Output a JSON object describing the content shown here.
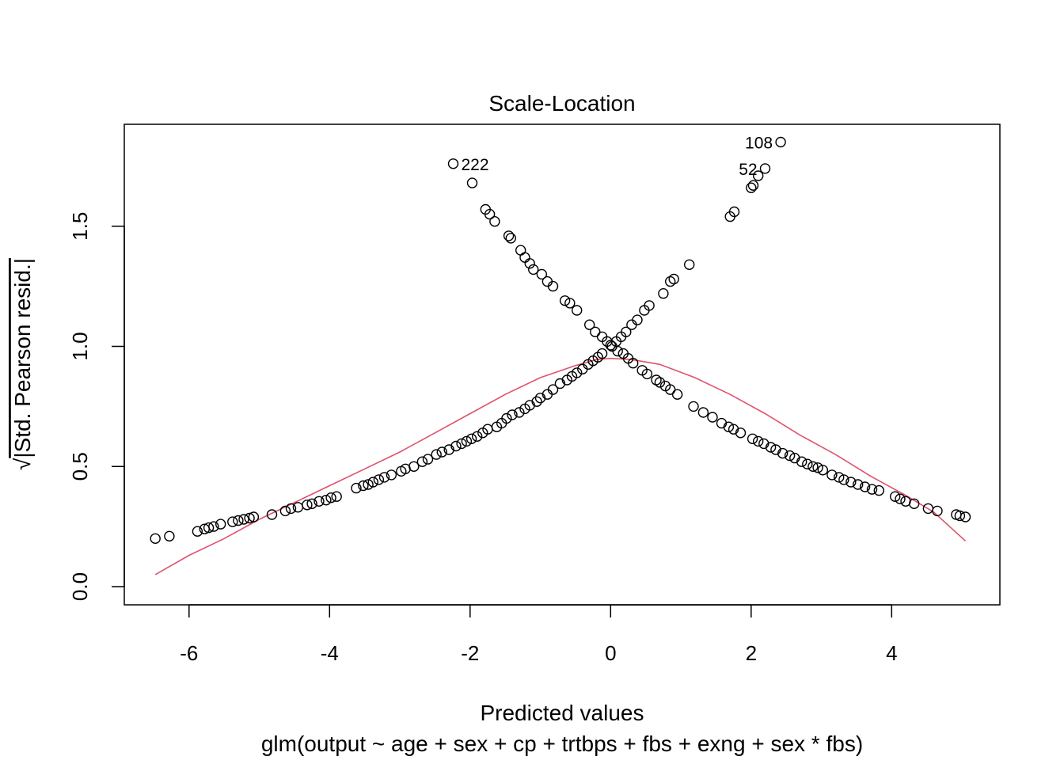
{
  "chart_data": {
    "type": "scatter",
    "title": "Scale-Location",
    "xlabel": "Predicted values",
    "subtitle": "glm(output ~ age + sex + cp + trtbps + fbs + exng + sex * fbs)",
    "ylabel_prefix": "√",
    "ylabel": "|Std. Pearson resid.|",
    "xlim": [
      -6.6,
      5.2
    ],
    "ylim": [
      0,
      1.85
    ],
    "x_ticks": [
      -6,
      -4,
      -2,
      0,
      2,
      4
    ],
    "x_tick_labels": [
      "-6",
      "-4",
      "-2",
      "0",
      "2",
      "4"
    ],
    "y_ticks": [
      0.0,
      0.5,
      1.0,
      1.5
    ],
    "y_tick_labels": [
      "0.0",
      "0.5",
      "1.0",
      "1.5"
    ],
    "grid": false,
    "point_style": "open-circle",
    "colors": {
      "points": "#000000",
      "smoother": "#DF536B",
      "axes": "#000000"
    },
    "annotations": [
      {
        "text": "108",
        "x": 2.42,
        "y": 1.85,
        "side": "left"
      },
      {
        "text": "52",
        "x": 2.2,
        "y": 1.74,
        "side": "left"
      },
      {
        "text": "222",
        "x": -2.24,
        "y": 1.76,
        "side": "right"
      }
    ],
    "series": [
      {
        "name": "",
        "kind": "points",
        "points": [
          [
            -6.48,
            0.2
          ],
          [
            -6.28,
            0.21
          ],
          [
            -5.88,
            0.23
          ],
          [
            -5.78,
            0.24
          ],
          [
            -5.72,
            0.245
          ],
          [
            -5.65,
            0.25
          ],
          [
            -5.55,
            0.26
          ],
          [
            -5.38,
            0.27
          ],
          [
            -5.3,
            0.275
          ],
          [
            -5.22,
            0.28
          ],
          [
            -5.14,
            0.285
          ],
          [
            -5.08,
            0.29
          ],
          [
            -4.82,
            0.3
          ],
          [
            -4.63,
            0.315
          ],
          [
            -4.55,
            0.325
          ],
          [
            -4.45,
            0.33
          ],
          [
            -4.32,
            0.34
          ],
          [
            -4.25,
            0.345
          ],
          [
            -4.15,
            0.355
          ],
          [
            -4.05,
            0.36
          ],
          [
            -3.98,
            0.37
          ],
          [
            -3.9,
            0.375
          ],
          [
            -3.62,
            0.41
          ],
          [
            -3.52,
            0.42
          ],
          [
            -3.45,
            0.425
          ],
          [
            -3.38,
            0.435
          ],
          [
            -3.3,
            0.445
          ],
          [
            -3.22,
            0.455
          ],
          [
            -3.12,
            0.465
          ],
          [
            -2.98,
            0.48
          ],
          [
            -2.92,
            0.49
          ],
          [
            -2.8,
            0.5
          ],
          [
            -2.68,
            0.52
          ],
          [
            -2.6,
            0.53
          ],
          [
            -2.48,
            0.55
          ],
          [
            -2.4,
            0.56
          ],
          [
            -2.3,
            0.57
          ],
          [
            -2.2,
            0.585
          ],
          [
            -2.12,
            0.595
          ],
          [
            -2.05,
            0.605
          ],
          [
            -1.98,
            0.615
          ],
          [
            -1.9,
            0.625
          ],
          [
            -1.82,
            0.64
          ],
          [
            -1.75,
            0.655
          ],
          [
            -1.62,
            0.665
          ],
          [
            -1.55,
            0.68
          ],
          [
            -1.48,
            0.7
          ],
          [
            -1.4,
            0.715
          ],
          [
            -1.3,
            0.725
          ],
          [
            -1.22,
            0.74
          ],
          [
            -1.15,
            0.755
          ],
          [
            -1.05,
            0.77
          ],
          [
            -1.0,
            0.785
          ],
          [
            -0.9,
            0.8
          ],
          [
            -0.82,
            0.82
          ],
          [
            -0.72,
            0.845
          ],
          [
            -0.62,
            0.86
          ],
          [
            -0.55,
            0.875
          ],
          [
            -0.48,
            0.89
          ],
          [
            -0.4,
            0.905
          ],
          [
            -0.32,
            0.925
          ],
          [
            -0.25,
            0.94
          ],
          [
            -0.18,
            0.955
          ],
          [
            -0.12,
            0.97
          ],
          [
            0.0,
            1.005
          ],
          [
            0.08,
            1.02
          ],
          [
            0.15,
            1.04
          ],
          [
            0.22,
            1.06
          ],
          [
            0.3,
            1.09
          ],
          [
            0.38,
            1.11
          ],
          [
            0.48,
            1.15
          ],
          [
            0.55,
            1.17
          ],
          [
            0.75,
            1.22
          ],
          [
            0.85,
            1.27
          ],
          [
            0.9,
            1.28
          ],
          [
            1.12,
            1.34
          ],
          [
            1.7,
            1.54
          ],
          [
            1.76,
            1.56
          ],
          [
            2.0,
            1.66
          ],
          [
            2.03,
            1.67
          ],
          [
            2.1,
            1.71
          ],
          [
            2.2,
            1.74
          ],
          [
            2.42,
            1.85
          ],
          [
            -2.24,
            1.76
          ],
          [
            -1.97,
            1.68
          ],
          [
            -1.78,
            1.57
          ],
          [
            -1.72,
            1.55
          ],
          [
            -1.65,
            1.52
          ],
          [
            -1.45,
            1.46
          ],
          [
            -1.42,
            1.45
          ],
          [
            -1.28,
            1.4
          ],
          [
            -1.22,
            1.37
          ],
          [
            -1.15,
            1.345
          ],
          [
            -1.1,
            1.32
          ],
          [
            -0.98,
            1.3
          ],
          [
            -0.9,
            1.27
          ],
          [
            -0.82,
            1.25
          ],
          [
            -0.65,
            1.19
          ],
          [
            -0.58,
            1.18
          ],
          [
            -0.48,
            1.15
          ],
          [
            -0.3,
            1.09
          ],
          [
            -0.22,
            1.06
          ],
          [
            -0.12,
            1.04
          ],
          [
            -0.05,
            1.02
          ],
          [
            0.02,
            1.0
          ],
          [
            0.1,
            0.98
          ],
          [
            0.18,
            0.97
          ],
          [
            0.25,
            0.95
          ],
          [
            0.32,
            0.93
          ],
          [
            0.45,
            0.9
          ],
          [
            0.52,
            0.885
          ],
          [
            0.65,
            0.86
          ],
          [
            0.7,
            0.85
          ],
          [
            0.78,
            0.835
          ],
          [
            0.85,
            0.82
          ],
          [
            0.95,
            0.8
          ],
          [
            1.18,
            0.75
          ],
          [
            1.32,
            0.725
          ],
          [
            1.45,
            0.705
          ],
          [
            1.58,
            0.68
          ],
          [
            1.68,
            0.665
          ],
          [
            1.75,
            0.655
          ],
          [
            1.85,
            0.64
          ],
          [
            2.02,
            0.615
          ],
          [
            2.1,
            0.605
          ],
          [
            2.18,
            0.595
          ],
          [
            2.28,
            0.58
          ],
          [
            2.35,
            0.57
          ],
          [
            2.45,
            0.555
          ],
          [
            2.55,
            0.545
          ],
          [
            2.62,
            0.535
          ],
          [
            2.72,
            0.52
          ],
          [
            2.8,
            0.51
          ],
          [
            2.88,
            0.5
          ],
          [
            2.95,
            0.495
          ],
          [
            3.02,
            0.485
          ],
          [
            3.15,
            0.465
          ],
          [
            3.25,
            0.455
          ],
          [
            3.32,
            0.445
          ],
          [
            3.42,
            0.435
          ],
          [
            3.52,
            0.425
          ],
          [
            3.62,
            0.415
          ],
          [
            3.72,
            0.405
          ],
          [
            3.82,
            0.4
          ],
          [
            4.05,
            0.375
          ],
          [
            4.12,
            0.365
          ],
          [
            4.2,
            0.355
          ],
          [
            4.32,
            0.345
          ],
          [
            4.52,
            0.325
          ],
          [
            4.65,
            0.315
          ],
          [
            4.92,
            0.3
          ],
          [
            4.97,
            0.295
          ],
          [
            5.05,
            0.29
          ]
        ]
      },
      {
        "name": "",
        "kind": "smoother",
        "points": [
          [
            -6.48,
            0.05
          ],
          [
            -6.0,
            0.13
          ],
          [
            -5.5,
            0.2
          ],
          [
            -5.0,
            0.28
          ],
          [
            -4.5,
            0.35
          ],
          [
            -4.0,
            0.42
          ],
          [
            -3.5,
            0.49
          ],
          [
            -3.0,
            0.56
          ],
          [
            -2.5,
            0.64
          ],
          [
            -2.0,
            0.72
          ],
          [
            -1.5,
            0.8
          ],
          [
            -1.0,
            0.87
          ],
          [
            -0.5,
            0.92
          ],
          [
            -0.2,
            0.945
          ],
          [
            0.0,
            0.95
          ],
          [
            0.3,
            0.945
          ],
          [
            0.7,
            0.925
          ],
          [
            1.2,
            0.87
          ],
          [
            1.7,
            0.8
          ],
          [
            2.2,
            0.72
          ],
          [
            2.7,
            0.63
          ],
          [
            3.2,
            0.55
          ],
          [
            3.7,
            0.46
          ],
          [
            4.2,
            0.38
          ],
          [
            4.6,
            0.31
          ],
          [
            5.05,
            0.19
          ]
        ]
      }
    ]
  }
}
